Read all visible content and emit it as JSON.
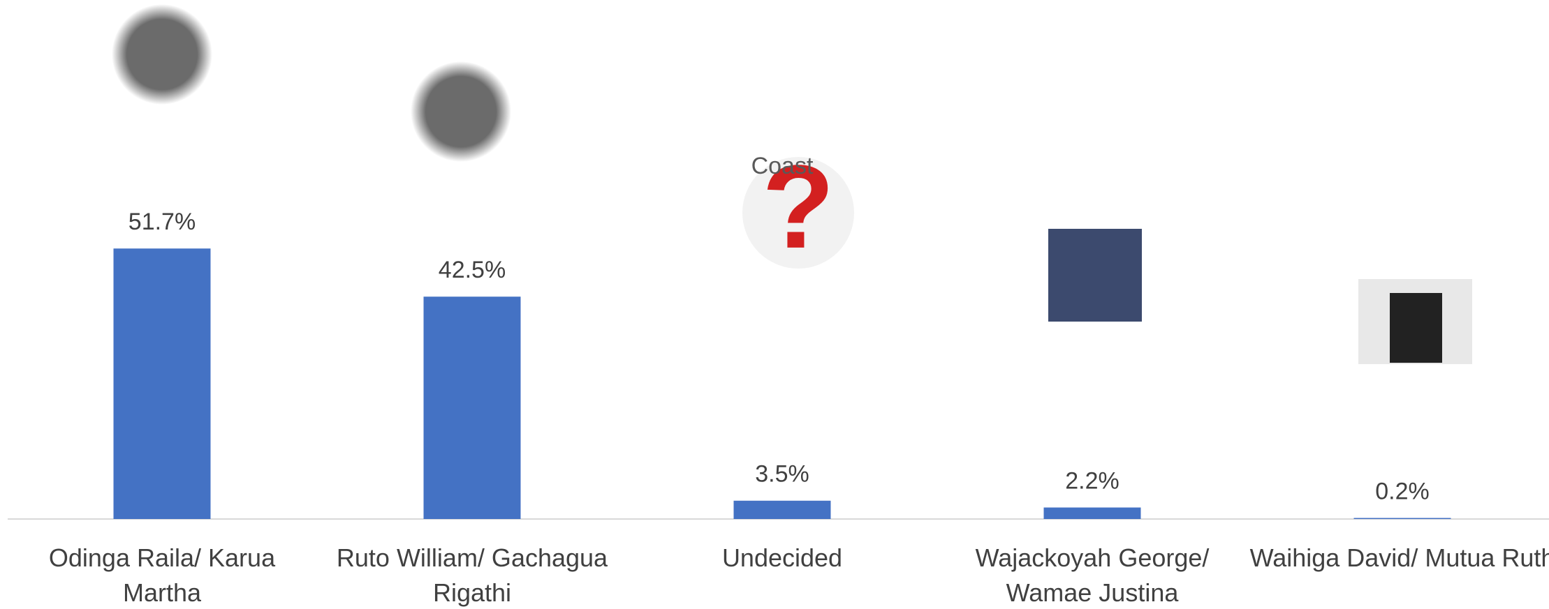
{
  "chart_data": {
    "type": "bar",
    "title": "Coast",
    "categories": [
      "Odinga Raila/ Karua Martha",
      "Ruto William/ Gachagua Rigathi",
      "Undecided",
      "Wajackoyah George/ Wamae Justina",
      "Waihiga David/ Mutua Ruth"
    ],
    "values": [
      51.7,
      42.5,
      3.5,
      2.2,
      0.2
    ],
    "value_labels": [
      "51.7%",
      "42.5%",
      "3.5%",
      "2.2%",
      "0.2%"
    ],
    "color": "#4472c4",
    "ylim": [
      0,
      60
    ]
  }
}
